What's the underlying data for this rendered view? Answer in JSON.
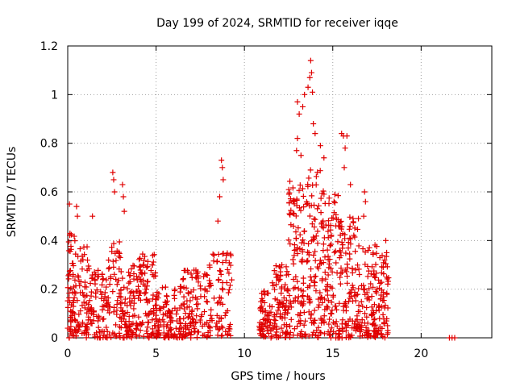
{
  "chart_data": {
    "type": "scatter",
    "title": "Day 199 of 2024, SRMTID for receiver iqqe",
    "xlabel": "GPS time / hours",
    "ylabel": "SRMTID / TECUs",
    "xlim": [
      0,
      24
    ],
    "ylim": [
      0,
      1.2
    ],
    "xticks": [
      0,
      5,
      10,
      15,
      20
    ],
    "xtick_labels": [
      "0",
      "5",
      "10",
      "15",
      "20"
    ],
    "yticks": [
      0,
      0.2,
      0.4,
      0.6,
      0.8,
      1.0,
      1.2
    ],
    "ytick_labels": [
      "0",
      "0.2",
      "0.4",
      "0.6",
      "0.8",
      "1",
      "1.2"
    ],
    "grid": true,
    "marker": "plus",
    "marker_color": "#e00000",
    "density_segments": [
      {
        "x": [
          0.0,
          0.5
        ],
        "ymax": 0.45,
        "n": 70
      },
      {
        "x": [
          0.5,
          1.5
        ],
        "ymax": 0.38,
        "n": 80
      },
      {
        "x": [
          1.5,
          2.3
        ],
        "ymax": 0.28,
        "n": 60
      },
      {
        "x": [
          2.3,
          3.0
        ],
        "ymax": 0.4,
        "n": 50
      },
      {
        "x": [
          3.0,
          4.0
        ],
        "ymax": 0.3,
        "n": 90
      },
      {
        "x": [
          4.0,
          5.0
        ],
        "ymax": 0.35,
        "n": 90
      },
      {
        "x": [
          5.0,
          6.5
        ],
        "ymax": 0.22,
        "n": 110
      },
      {
        "x": [
          6.5,
          8.0
        ],
        "ymax": 0.28,
        "n": 110
      },
      {
        "x": [
          8.0,
          9.3
        ],
        "ymax": 0.35,
        "n": 80
      },
      {
        "x": [
          10.8,
          11.5
        ],
        "ymax": 0.2,
        "n": 60
      },
      {
        "x": [
          11.5,
          12.5
        ],
        "ymax": 0.3,
        "n": 90
      },
      {
        "x": [
          12.5,
          13.5
        ],
        "ymax": 0.65,
        "n": 110
      },
      {
        "x": [
          13.5,
          14.5
        ],
        "ymax": 0.7,
        "n": 110
      },
      {
        "x": [
          14.5,
          15.5
        ],
        "ymax": 0.6,
        "n": 110
      },
      {
        "x": [
          15.5,
          16.5
        ],
        "ymax": 0.5,
        "n": 100
      },
      {
        "x": [
          16.5,
          17.5
        ],
        "ymax": 0.4,
        "n": 90
      },
      {
        "x": [
          17.5,
          18.2
        ],
        "ymax": 0.35,
        "n": 60
      }
    ],
    "points": [
      {
        "x": 0.1,
        "y": 0.55
      },
      {
        "x": 0.5,
        "y": 0.54
      },
      {
        "x": 0.55,
        "y": 0.5
      },
      {
        "x": 1.4,
        "y": 0.5
      },
      {
        "x": 2.55,
        "y": 0.68
      },
      {
        "x": 2.6,
        "y": 0.65
      },
      {
        "x": 2.65,
        "y": 0.6
      },
      {
        "x": 3.1,
        "y": 0.63
      },
      {
        "x": 3.15,
        "y": 0.58
      },
      {
        "x": 3.2,
        "y": 0.52
      },
      {
        "x": 8.7,
        "y": 0.73
      },
      {
        "x": 8.75,
        "y": 0.7
      },
      {
        "x": 8.8,
        "y": 0.65
      },
      {
        "x": 8.6,
        "y": 0.58
      },
      {
        "x": 8.5,
        "y": 0.48
      },
      {
        "x": 13.0,
        "y": 0.97
      },
      {
        "x": 13.1,
        "y": 0.92
      },
      {
        "x": 13.3,
        "y": 0.95
      },
      {
        "x": 13.4,
        "y": 1.0
      },
      {
        "x": 13.6,
        "y": 1.03
      },
      {
        "x": 13.7,
        "y": 1.07
      },
      {
        "x": 13.75,
        "y": 1.14
      },
      {
        "x": 13.8,
        "y": 1.09
      },
      {
        "x": 13.85,
        "y": 1.01
      },
      {
        "x": 13.9,
        "y": 0.88
      },
      {
        "x": 13.0,
        "y": 0.82
      },
      {
        "x": 12.95,
        "y": 0.77
      },
      {
        "x": 13.2,
        "y": 0.75
      },
      {
        "x": 14.0,
        "y": 0.84
      },
      {
        "x": 14.3,
        "y": 0.79
      },
      {
        "x": 14.5,
        "y": 0.74
      },
      {
        "x": 15.5,
        "y": 0.84
      },
      {
        "x": 15.6,
        "y": 0.83
      },
      {
        "x": 15.7,
        "y": 0.78
      },
      {
        "x": 15.8,
        "y": 0.83
      },
      {
        "x": 15.65,
        "y": 0.7
      },
      {
        "x": 16.0,
        "y": 0.63
      },
      {
        "x": 16.8,
        "y": 0.6
      },
      {
        "x": 16.85,
        "y": 0.56
      },
      {
        "x": 16.75,
        "y": 0.5
      },
      {
        "x": 18.0,
        "y": 0.4
      },
      {
        "x": 18.05,
        "y": 0.35
      },
      {
        "x": 18.1,
        "y": 0.05
      },
      {
        "x": 21.6,
        "y": 0.0
      },
      {
        "x": 21.75,
        "y": 0.0
      },
      {
        "x": 21.9,
        "y": 0.0
      }
    ]
  }
}
